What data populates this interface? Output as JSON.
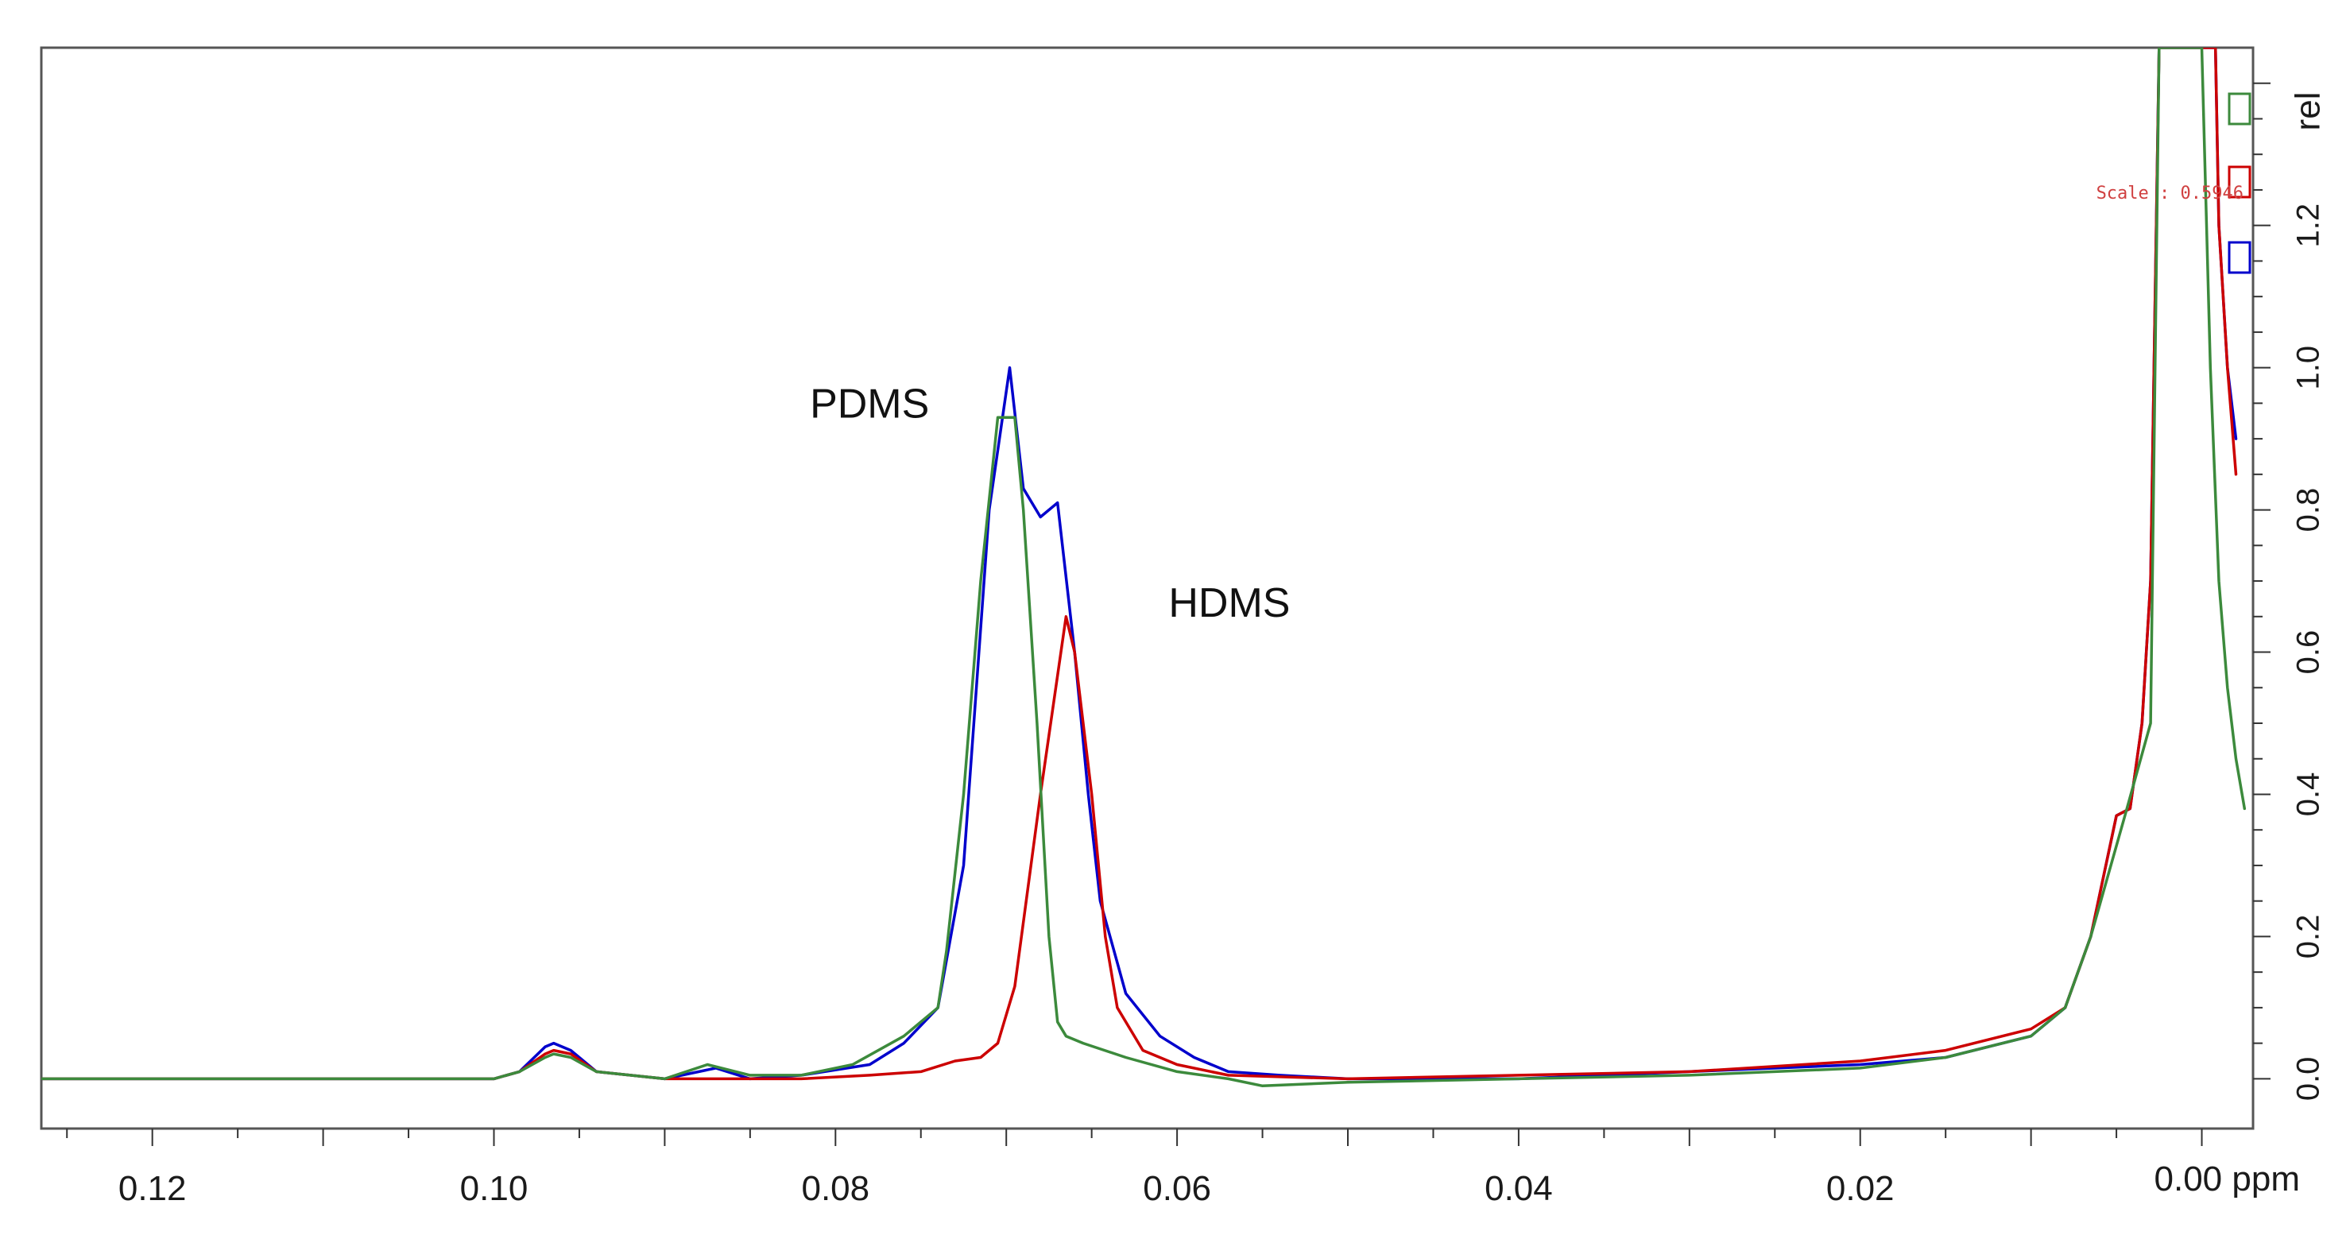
{
  "chart_data": {
    "type": "line",
    "title": "",
    "xlabel": "ppm",
    "ylabel": "rel",
    "x_reversed": true,
    "xlim": [
      0.1265,
      -0.003
    ],
    "ylim": [
      -0.07,
      1.45
    ],
    "x_ticks": [
      {
        "value": 0.12,
        "label": "0.12"
      },
      {
        "value": 0.1,
        "label": "0.10"
      },
      {
        "value": 0.08,
        "label": "0.08"
      },
      {
        "value": 0.06,
        "label": "0.06"
      },
      {
        "value": 0.04,
        "label": "0.04"
      },
      {
        "value": 0.02,
        "label": "0.02"
      },
      {
        "value": 0.0,
        "label": "0.00 ppm"
      }
    ],
    "y_ticks": [
      {
        "value": 0.0,
        "label": "0.0"
      },
      {
        "value": 0.2,
        "label": "0.2"
      },
      {
        "value": 0.4,
        "label": "0.4"
      },
      {
        "value": 0.6,
        "label": "0.6"
      },
      {
        "value": 0.8,
        "label": "0.8"
      },
      {
        "value": 1.0,
        "label": "1.0"
      },
      {
        "value": 1.2,
        "label": "1.2"
      }
    ],
    "grid": false,
    "legend": "none",
    "scale_text": "Scale : 0.5946",
    "scale_color": "#d04040",
    "annotations": [
      {
        "text": "PDMS",
        "x": 0.0815,
        "y": 0.93
      },
      {
        "text": "HDMS",
        "x": 0.0605,
        "y": 0.65
      }
    ],
    "series": [
      {
        "color": "#0000cc",
        "points": [
          [
            0.1265,
            0.0
          ],
          [
            0.12,
            0.0
          ],
          [
            0.11,
            0.0
          ],
          [
            0.1,
            0.0
          ],
          [
            0.0985,
            0.01
          ],
          [
            0.097,
            0.045
          ],
          [
            0.0965,
            0.05
          ],
          [
            0.0955,
            0.04
          ],
          [
            0.094,
            0.01
          ],
          [
            0.09,
            0.0
          ],
          [
            0.087,
            0.015
          ],
          [
            0.085,
            0.0
          ],
          [
            0.082,
            0.005
          ],
          [
            0.078,
            0.02
          ],
          [
            0.076,
            0.05
          ],
          [
            0.074,
            0.1
          ],
          [
            0.0725,
            0.3
          ],
          [
            0.071,
            0.8
          ],
          [
            0.0698,
            1.0
          ],
          [
            0.069,
            0.83
          ],
          [
            0.068,
            0.79
          ],
          [
            0.067,
            0.81
          ],
          [
            0.066,
            0.6
          ],
          [
            0.0652,
            0.4
          ],
          [
            0.0645,
            0.25
          ],
          [
            0.063,
            0.12
          ],
          [
            0.061,
            0.06
          ],
          [
            0.059,
            0.03
          ],
          [
            0.057,
            0.01
          ],
          [
            0.054,
            0.005
          ],
          [
            0.05,
            0.0
          ],
          [
            0.04,
            0.0
          ],
          [
            0.03,
            0.01
          ],
          [
            0.02,
            0.02
          ],
          [
            0.015,
            0.03
          ],
          [
            0.01,
            0.06
          ],
          [
            0.008,
            0.1
          ],
          [
            0.0065,
            0.2
          ],
          [
            0.005,
            0.37
          ],
          [
            0.0042,
            0.38
          ],
          [
            0.0035,
            0.5
          ],
          [
            0.003,
            0.7
          ],
          [
            0.0025,
            1.45
          ],
          [
            -0.0008,
            1.45
          ],
          [
            -0.001,
            1.2
          ],
          [
            -0.0015,
            1.0
          ],
          [
            -0.002,
            0.9
          ]
        ]
      },
      {
        "color": "#cc0000",
        "points": [
          [
            0.1265,
            0.0
          ],
          [
            0.12,
            0.0
          ],
          [
            0.11,
            0.0
          ],
          [
            0.1,
            0.0
          ],
          [
            0.0985,
            0.01
          ],
          [
            0.097,
            0.035
          ],
          [
            0.0965,
            0.04
          ],
          [
            0.0955,
            0.035
          ],
          [
            0.094,
            0.01
          ],
          [
            0.09,
            0.0
          ],
          [
            0.086,
            0.0
          ],
          [
            0.082,
            0.0
          ],
          [
            0.078,
            0.005
          ],
          [
            0.075,
            0.01
          ],
          [
            0.073,
            0.025
          ],
          [
            0.0715,
            0.03
          ],
          [
            0.0705,
            0.05
          ],
          [
            0.0695,
            0.13
          ],
          [
            0.068,
            0.4
          ],
          [
            0.0665,
            0.65
          ],
          [
            0.066,
            0.6
          ],
          [
            0.065,
            0.4
          ],
          [
            0.0642,
            0.2
          ],
          [
            0.0635,
            0.1
          ],
          [
            0.062,
            0.04
          ],
          [
            0.06,
            0.02
          ],
          [
            0.057,
            0.005
          ],
          [
            0.05,
            0.0
          ],
          [
            0.04,
            0.005
          ],
          [
            0.03,
            0.01
          ],
          [
            0.02,
            0.025
          ],
          [
            0.015,
            0.04
          ],
          [
            0.01,
            0.07
          ],
          [
            0.008,
            0.1
          ],
          [
            0.0065,
            0.2
          ],
          [
            0.005,
            0.37
          ],
          [
            0.0042,
            0.38
          ],
          [
            0.0035,
            0.5
          ],
          [
            0.003,
            0.7
          ],
          [
            0.0025,
            1.45
          ],
          [
            -0.0008,
            1.45
          ],
          [
            -0.001,
            1.2
          ],
          [
            -0.0015,
            1.0
          ],
          [
            -0.002,
            0.85
          ]
        ]
      },
      {
        "color": "#3c8a3c",
        "points": [
          [
            0.1265,
            0.0
          ],
          [
            0.12,
            0.0
          ],
          [
            0.11,
            0.0
          ],
          [
            0.1,
            0.0
          ],
          [
            0.0985,
            0.01
          ],
          [
            0.097,
            0.03
          ],
          [
            0.0965,
            0.035
          ],
          [
            0.0955,
            0.03
          ],
          [
            0.094,
            0.01
          ],
          [
            0.09,
            0.0
          ],
          [
            0.0875,
            0.02
          ],
          [
            0.085,
            0.005
          ],
          [
            0.082,
            0.005
          ],
          [
            0.079,
            0.02
          ],
          [
            0.076,
            0.06
          ],
          [
            0.074,
            0.1
          ],
          [
            0.0735,
            0.18
          ],
          [
            0.0725,
            0.4
          ],
          [
            0.0715,
            0.7
          ],
          [
            0.0705,
            0.93
          ],
          [
            0.0695,
            0.93
          ],
          [
            0.069,
            0.8
          ],
          [
            0.0682,
            0.5
          ],
          [
            0.0675,
            0.2
          ],
          [
            0.067,
            0.08
          ],
          [
            0.0665,
            0.06
          ],
          [
            0.0655,
            0.05
          ],
          [
            0.063,
            0.03
          ],
          [
            0.06,
            0.01
          ],
          [
            0.057,
            0.0
          ],
          [
            0.055,
            -0.01
          ],
          [
            0.05,
            -0.005
          ],
          [
            0.04,
            0.0
          ],
          [
            0.03,
            0.005
          ],
          [
            0.02,
            0.015
          ],
          [
            0.015,
            0.03
          ],
          [
            0.01,
            0.06
          ],
          [
            0.008,
            0.1
          ],
          [
            0.0065,
            0.2
          ],
          [
            0.0045,
            0.37
          ],
          [
            0.003,
            0.5
          ],
          [
            0.0025,
            1.45
          ],
          [
            0.0,
            1.45
          ],
          [
            -0.0005,
            1.0
          ],
          [
            -0.001,
            0.7
          ],
          [
            -0.0015,
            0.55
          ],
          [
            -0.002,
            0.45
          ],
          [
            -0.0025,
            0.38
          ]
        ]
      }
    ]
  }
}
